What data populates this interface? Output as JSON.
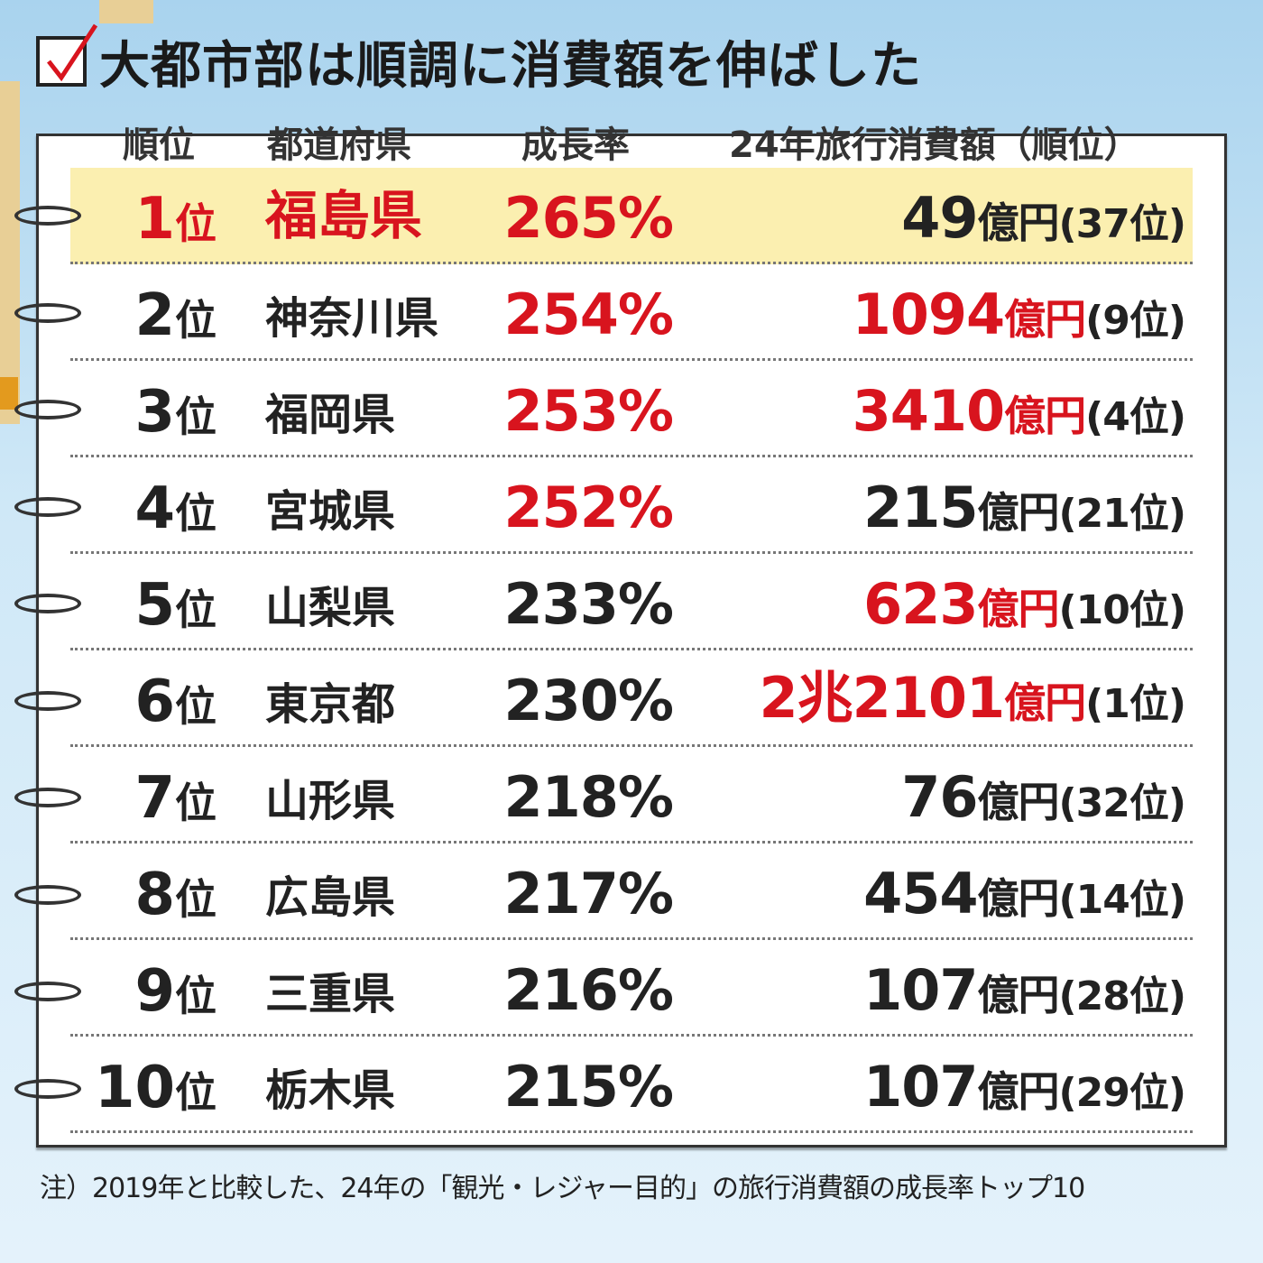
{
  "title": "大都市部は順調に消費額を伸ばした",
  "headers": {
    "rank": "順位",
    "prefecture": "都道府県",
    "growth": "成長率",
    "spending": "24年旅行消費額（順位）"
  },
  "rank_suffix": "位",
  "rows": [
    {
      "rank": "1",
      "prefecture": "福島県",
      "growth": "265%",
      "amount": "49",
      "unit": "億円",
      "amount_rank": "(37位)",
      "highlight": true,
      "growth_red": true,
      "amount_red": false
    },
    {
      "rank": "2",
      "prefecture": "神奈川県",
      "growth": "254%",
      "amount": "1094",
      "unit": "億円",
      "amount_rank": "(9位)",
      "highlight": false,
      "growth_red": true,
      "amount_red": true
    },
    {
      "rank": "3",
      "prefecture": "福岡県",
      "growth": "253%",
      "amount": "3410",
      "unit": "億円",
      "amount_rank": "(4位)",
      "highlight": false,
      "growth_red": true,
      "amount_red": true
    },
    {
      "rank": "4",
      "prefecture": "宮城県",
      "growth": "252%",
      "amount": "215",
      "unit": "億円",
      "amount_rank": "(21位)",
      "highlight": false,
      "growth_red": true,
      "amount_red": false
    },
    {
      "rank": "5",
      "prefecture": "山梨県",
      "growth": "233%",
      "amount": "623",
      "unit": "億円",
      "amount_rank": "(10位)",
      "highlight": false,
      "growth_red": false,
      "amount_red": true
    },
    {
      "rank": "6",
      "prefecture": "東京都",
      "growth": "230%",
      "amount": "2兆2101",
      "unit": "億円",
      "amount_rank": "(1位)",
      "highlight": false,
      "growth_red": false,
      "amount_red": true
    },
    {
      "rank": "7",
      "prefecture": "山形県",
      "growth": "218%",
      "amount": "76",
      "unit": "億円",
      "amount_rank": "(32位)",
      "highlight": false,
      "growth_red": false,
      "amount_red": false
    },
    {
      "rank": "8",
      "prefecture": "広島県",
      "growth": "217%",
      "amount": "454",
      "unit": "億円",
      "amount_rank": "(14位)",
      "highlight": false,
      "growth_red": false,
      "amount_red": false
    },
    {
      "rank": "9",
      "prefecture": "三重県",
      "growth": "216%",
      "amount": "107",
      "unit": "億円",
      "amount_rank": "(28位)",
      "highlight": false,
      "growth_red": false,
      "amount_red": false
    },
    {
      "rank": "10",
      "prefecture": "栃木県",
      "growth": "215%",
      "amount": "107",
      "unit": "億円",
      "amount_rank": "(29位)",
      "highlight": false,
      "growth_red": false,
      "amount_red": false
    }
  ],
  "note": "注）2019年と比較した、24年の「観光・レジャー目的」の旅行消費額の成長率トップ10",
  "colors": {
    "accent_red": "#d8141e",
    "highlight": "#fbefb0"
  }
}
